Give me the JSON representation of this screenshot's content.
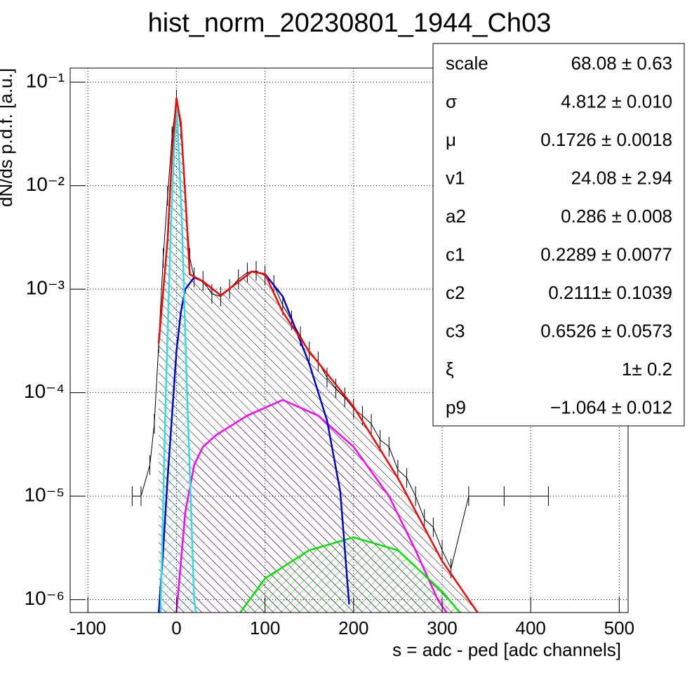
{
  "chart_data": {
    "type": "line",
    "title": "hist_norm_20230801_1944_Ch03",
    "x_label": "s = adc - ped [adc channels]",
    "y_label": "dN/ds p.d.f. [a.u.]",
    "log_y": true,
    "grid": true,
    "xlim": [
      -120,
      510
    ],
    "ylim": [
      7.5e-07,
      0.137
    ],
    "xticks": [
      -100,
      0,
      100,
      200,
      300,
      400,
      500
    ],
    "yticks": [
      {
        "value": 1e-06,
        "label": "10⁻⁶"
      },
      {
        "value": 1e-05,
        "label": "10⁻⁵"
      },
      {
        "value": 0.0001,
        "label": "10⁻⁴"
      },
      {
        "value": 0.001,
        "label": "10⁻³"
      },
      {
        "value": 0.01,
        "label": "10⁻²"
      },
      {
        "value": 0.1,
        "label": "10⁻¹"
      }
    ],
    "histogram": {
      "color": "#000000",
      "x": [
        -50,
        -40,
        -30,
        -25,
        -20,
        -15,
        -10,
        -5,
        0,
        5,
        10,
        15,
        20,
        30,
        40,
        50,
        60,
        70,
        80,
        90,
        100,
        110,
        120,
        130,
        140,
        150,
        160,
        170,
        180,
        190,
        200,
        210,
        220,
        230,
        240,
        250,
        260,
        270,
        280,
        290,
        300,
        310,
        330,
        370,
        420
      ],
      "values": [
        1e-05,
        1e-05,
        2e-05,
        5e-05,
        0.0003,
        0.002,
        0.008,
        0.03,
        0.068,
        0.035,
        0.008,
        0.002,
        0.0013,
        0.0012,
        0.0009,
        0.00085,
        0.001,
        0.00125,
        0.00145,
        0.0015,
        0.00135,
        0.0011,
        0.0007,
        0.0005,
        0.00035,
        0.00025,
        0.0002,
        0.00014,
        0.00011,
        9e-05,
        7e-05,
        6e-05,
        5e-05,
        3.5e-05,
        3e-05,
        1.8e-05,
        1.5e-05,
        1e-05,
        6e-06,
        5e-06,
        3e-06,
        2e-06,
        1e-05,
        1e-05,
        1e-05
      ]
    },
    "series": [
      {
        "color": "#ff00ff",
        "hatch": "#ff00ff",
        "x": [
          0,
          10,
          20,
          30,
          45,
          80,
          120,
          160,
          200,
          240,
          270,
          295,
          305
        ],
        "values": [
          7.5e-07,
          7e-06,
          2e-05,
          3e-05,
          3.9e-05,
          6e-05,
          8.5e-05,
          6e-05,
          3e-05,
          1e-05,
          3e-06,
          1e-06,
          7.5e-07
        ]
      },
      {
        "color": "#00e000",
        "hatch": "#00e000",
        "x": [
          72,
          100,
          150,
          200,
          250,
          300,
          320
        ],
        "values": [
          7.5e-07,
          1.6e-06,
          3e-06,
          4e-06,
          3e-06,
          1.2e-06,
          7.5e-07
        ]
      },
      {
        "color": "#0000cc",
        "hatch": null,
        "x": [
          -20,
          -15,
          -10,
          -5,
          0,
          5,
          10,
          20,
          30,
          50,
          85,
          100,
          120,
          150,
          170,
          185,
          195
        ],
        "values": [
          7.5e-07,
          3e-06,
          1.5e-05,
          6e-05,
          0.00025,
          0.0006,
          0.001,
          0.0013,
          0.00119,
          0.00087,
          0.00148,
          0.0014,
          0.00085,
          0.00019,
          5.4e-05,
          1.1e-05,
          9e-07
        ]
      },
      {
        "color": "#33dddd",
        "hatch": "#33cccc",
        "x": [
          -18,
          -12,
          -6,
          0,
          6,
          12,
          20,
          22
        ],
        "values": [
          7.5e-07,
          0.0001,
          0.005,
          0.065,
          0.005,
          0.0001,
          1e-06,
          7.5e-07
        ]
      },
      {
        "color": "#ff0000",
        "hatch": "#000000",
        "x": [
          -20,
          -10,
          -5,
          0,
          5,
          10,
          15,
          30,
          50,
          85,
          100,
          120,
          150,
          200,
          250,
          300,
          330,
          340
        ],
        "values": [
          0.0003,
          0.003,
          0.02,
          0.07,
          0.04,
          0.008,
          0.00139,
          0.00119,
          0.00087,
          0.00148,
          0.0014,
          0.0006,
          0.00025,
          7.3e-05,
          1.5e-05,
          2.36e-06,
          1e-06,
          7.5e-07
        ]
      }
    ],
    "stats": [
      [
        "scale",
        "68.08 ± 0.63"
      ],
      [
        "σ",
        "4.812 ± 0.010"
      ],
      [
        "μ",
        "0.1726 ± 0.0018"
      ],
      [
        "v1",
        "24.08 ± 2.94"
      ],
      [
        "a2",
        "0.286 ± 0.008"
      ],
      [
        "c1",
        "0.2289 ± 0.0077"
      ],
      [
        "c2",
        "0.2111± 0.1039"
      ],
      [
        "c3",
        "0.6526 ± 0.0573"
      ],
      [
        "ξ",
        "1± 0.2"
      ],
      [
        "p9",
        "−1.064 ± 0.012"
      ]
    ]
  }
}
